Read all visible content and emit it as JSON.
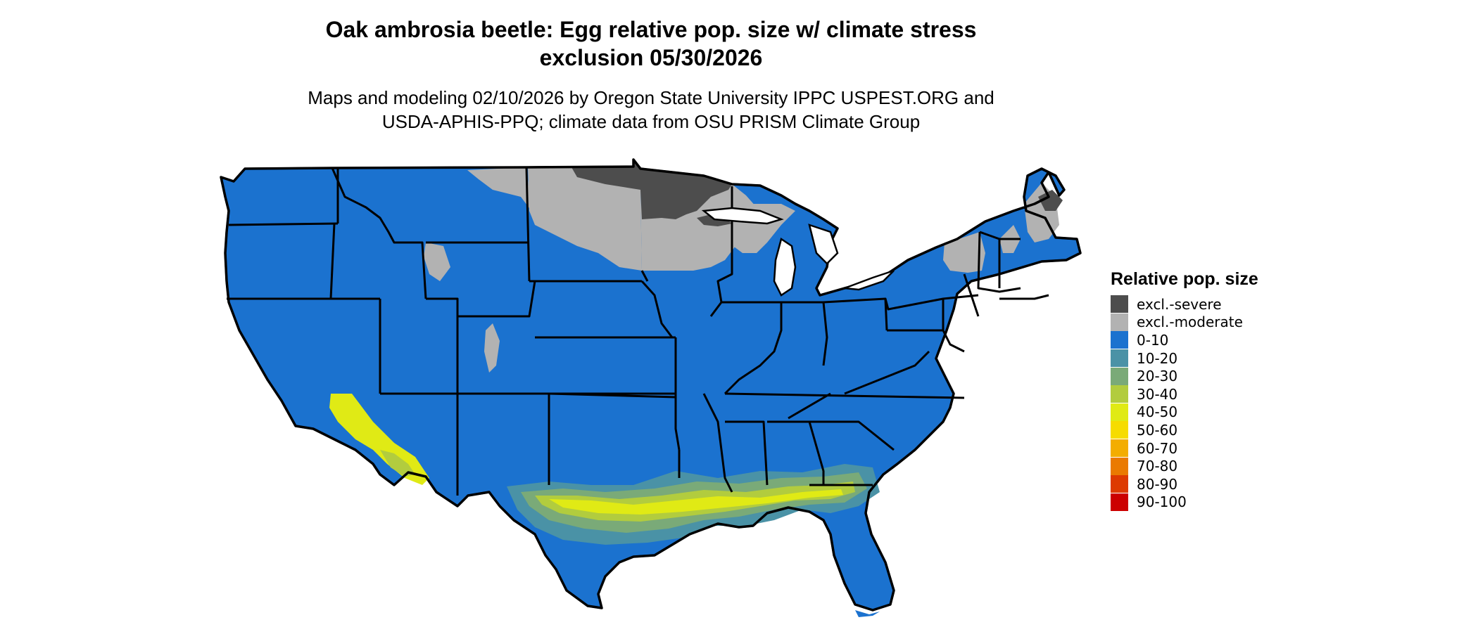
{
  "title_line1": "Oak ambrosia beetle: Egg relative pop. size w/ climate stress",
  "title_line2": "exclusion 05/30/2026",
  "subtitle_line1": "Maps and modeling 02/10/2026 by Oregon State University IPPC USPEST.ORG and",
  "subtitle_line2": "USDA-APHIS-PPQ; climate data from OSU PRISM Climate Group",
  "legend": {
    "title": "Relative pop. size",
    "items": [
      {
        "label": "excl.-severe",
        "color": "#4d4d4d"
      },
      {
        "label": "excl.-moderate",
        "color": "#b2b2b2"
      },
      {
        "label": "0-10",
        "color": "#1b72cf"
      },
      {
        "label": "10-20",
        "color": "#4a92a6"
      },
      {
        "label": "20-30",
        "color": "#7aaa78"
      },
      {
        "label": "30-40",
        "color": "#b2cc3e"
      },
      {
        "label": "40-50",
        "color": "#e0ea15"
      },
      {
        "label": "50-60",
        "color": "#f6dc00"
      },
      {
        "label": "60-70",
        "color": "#f3ad00"
      },
      {
        "label": "70-80",
        "color": "#ea7a00"
      },
      {
        "label": "80-90",
        "color": "#dd3a00"
      },
      {
        "label": "90-100",
        "color": "#cc0000"
      }
    ]
  }
}
